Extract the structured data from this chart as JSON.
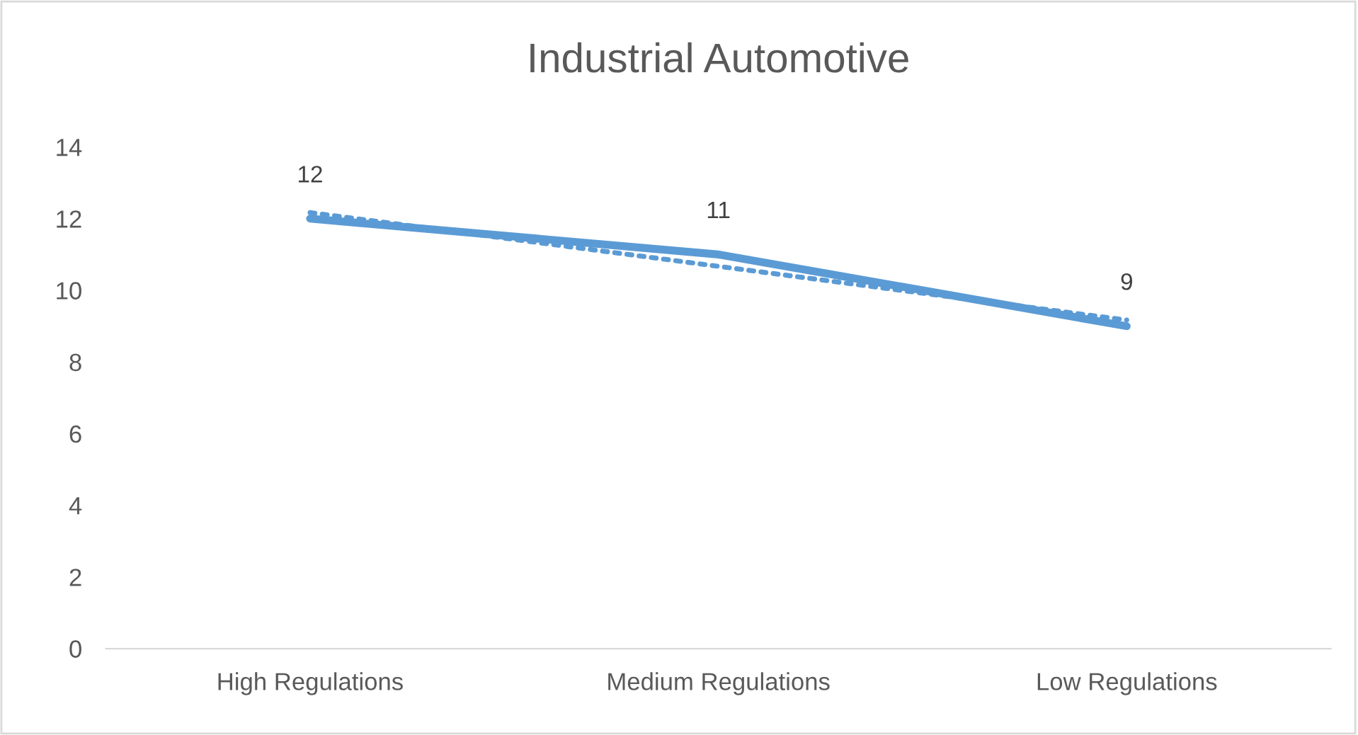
{
  "chart_data": {
    "type": "line",
    "title": "Industrial Automotive",
    "categories": [
      "High Regulations",
      "Medium Regulations",
      "Low Regulations"
    ],
    "series": [
      {
        "color": "#5b9bd5",
        "values": [
          12,
          11,
          9
        ],
        "value_labels": [
          "12",
          "11",
          "9"
        ],
        "line_style": "solid"
      },
      {
        "color": "#5b9bd5",
        "values": [
          12.17,
          10.67,
          9.17
        ],
        "line_style": "dotted"
      }
    ],
    "ylim": [
      0,
      14
    ],
    "yticks": [
      0,
      2,
      4,
      6,
      8,
      10,
      12,
      14
    ],
    "grid": false,
    "legend": false,
    "marker": "none"
  }
}
